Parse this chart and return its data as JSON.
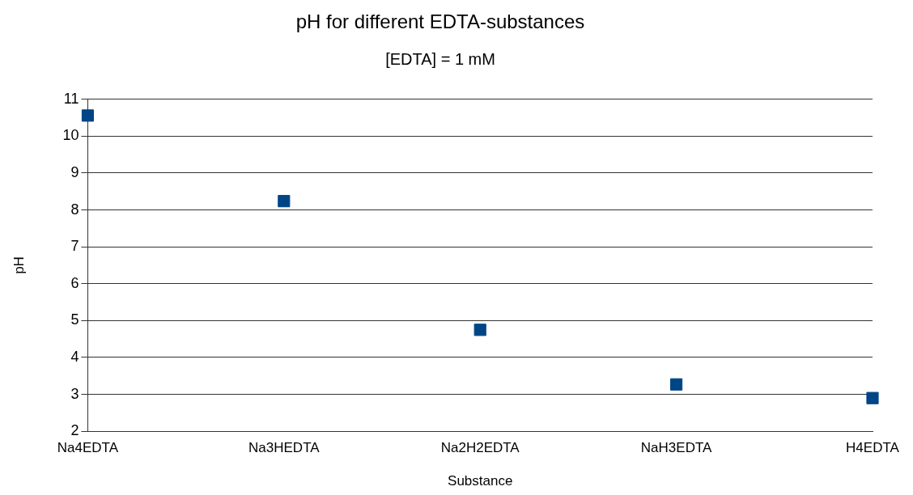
{
  "chart_data": {
    "type": "scatter",
    "title": "pH for different EDTA-substances",
    "subtitle": "[EDTA] = 1 mM",
    "xlabel": "Substance",
    "ylabel": "pH",
    "categories": [
      "Na4EDTA",
      "Na3HEDTA",
      "Na2H2EDTA",
      "NaH3EDTA",
      "H4EDTA"
    ],
    "values": [
      10.56,
      8.24,
      4.75,
      3.27,
      2.9
    ],
    "color": "#004586",
    "ylim": [
      2,
      11
    ],
    "yticks": [
      2,
      3,
      4,
      5,
      6,
      7,
      8,
      9,
      10,
      11
    ],
    "grid": "y",
    "legend": false,
    "marker": "square"
  }
}
